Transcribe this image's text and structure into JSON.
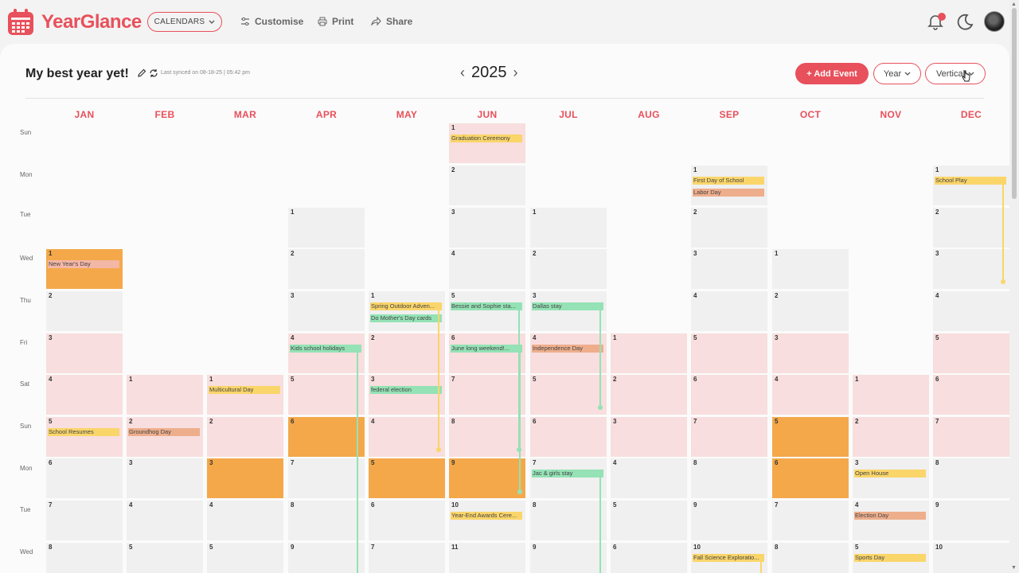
{
  "app": {
    "name": "YearGlance"
  },
  "nav": {
    "calendars_label": "CALENDARS",
    "customise_label": "Customise",
    "print_label": "Print",
    "share_label": "Share"
  },
  "calendar": {
    "title": "My best year yet!",
    "synced": "Last synced on 08-18-25 | 05:42 pm",
    "year": "2025",
    "add_event_label": "+ Add Event",
    "view_label": "Year",
    "layout_label": "Vertical"
  },
  "months": [
    "JAN",
    "FEB",
    "MAR",
    "APR",
    "MAY",
    "JUN",
    "JUL",
    "AUG",
    "SEP",
    "OCT",
    "NOV",
    "DEC"
  ],
  "weekdays": [
    "Sun",
    "Mon",
    "Tue",
    "Wed",
    "Thu",
    "Fri",
    "Sat",
    "Sun",
    "Mon",
    "Tue",
    "Wed"
  ],
  "cells": [
    {
      "m": 0,
      "r": 3,
      "d": "1",
      "t": "hl"
    },
    {
      "m": 0,
      "r": 4,
      "d": "2"
    },
    {
      "m": 0,
      "r": 5,
      "d": "3",
      "t": "we"
    },
    {
      "m": 0,
      "r": 6,
      "d": "4",
      "t": "we"
    },
    {
      "m": 0,
      "r": 7,
      "d": "5",
      "t": "we"
    },
    {
      "m": 0,
      "r": 8,
      "d": "6"
    },
    {
      "m": 0,
      "r": 9,
      "d": "7"
    },
    {
      "m": 0,
      "r": 10,
      "d": "8"
    },
    {
      "m": 1,
      "r": 6,
      "d": "1",
      "t": "we"
    },
    {
      "m": 1,
      "r": 7,
      "d": "2",
      "t": "we"
    },
    {
      "m": 1,
      "r": 8,
      "d": "3"
    },
    {
      "m": 1,
      "r": 9,
      "d": "4"
    },
    {
      "m": 1,
      "r": 10,
      "d": "5"
    },
    {
      "m": 2,
      "r": 6,
      "d": "1",
      "t": "we"
    },
    {
      "m": 2,
      "r": 7,
      "d": "2",
      "t": "we"
    },
    {
      "m": 2,
      "r": 8,
      "d": "3",
      "t": "hl"
    },
    {
      "m": 2,
      "r": 9,
      "d": "4"
    },
    {
      "m": 2,
      "r": 10,
      "d": "5"
    },
    {
      "m": 3,
      "r": 2,
      "d": "1"
    },
    {
      "m": 3,
      "r": 3,
      "d": "2"
    },
    {
      "m": 3,
      "r": 4,
      "d": "3"
    },
    {
      "m": 3,
      "r": 5,
      "d": "4",
      "t": "we"
    },
    {
      "m": 3,
      "r": 6,
      "d": "5",
      "t": "we"
    },
    {
      "m": 3,
      "r": 7,
      "d": "6",
      "t": "hl"
    },
    {
      "m": 3,
      "r": 8,
      "d": "7"
    },
    {
      "m": 3,
      "r": 9,
      "d": "8"
    },
    {
      "m": 3,
      "r": 10,
      "d": "9"
    },
    {
      "m": 4,
      "r": 4,
      "d": "1"
    },
    {
      "m": 4,
      "r": 5,
      "d": "2",
      "t": "we"
    },
    {
      "m": 4,
      "r": 6,
      "d": "3",
      "t": "we"
    },
    {
      "m": 4,
      "r": 7,
      "d": "4",
      "t": "we"
    },
    {
      "m": 4,
      "r": 8,
      "d": "5",
      "t": "hl"
    },
    {
      "m": 4,
      "r": 9,
      "d": "6"
    },
    {
      "m": 4,
      "r": 10,
      "d": "7"
    },
    {
      "m": 5,
      "r": 0,
      "d": "1",
      "t": "we"
    },
    {
      "m": 5,
      "r": 1,
      "d": "2"
    },
    {
      "m": 5,
      "r": 2,
      "d": "3"
    },
    {
      "m": 5,
      "r": 3,
      "d": "4"
    },
    {
      "m": 5,
      "r": 4,
      "d": "5"
    },
    {
      "m": 5,
      "r": 5,
      "d": "6",
      "t": "we"
    },
    {
      "m": 5,
      "r": 6,
      "d": "7",
      "t": "we"
    },
    {
      "m": 5,
      "r": 7,
      "d": "8",
      "t": "we"
    },
    {
      "m": 5,
      "r": 8,
      "d": "9",
      "t": "hl"
    },
    {
      "m": 5,
      "r": 9,
      "d": "10"
    },
    {
      "m": 5,
      "r": 10,
      "d": "11"
    },
    {
      "m": 6,
      "r": 2,
      "d": "1"
    },
    {
      "m": 6,
      "r": 3,
      "d": "2"
    },
    {
      "m": 6,
      "r": 4,
      "d": "3"
    },
    {
      "m": 6,
      "r": 5,
      "d": "4",
      "t": "we"
    },
    {
      "m": 6,
      "r": 6,
      "d": "5",
      "t": "we"
    },
    {
      "m": 6,
      "r": 7,
      "d": "6",
      "t": "we"
    },
    {
      "m": 6,
      "r": 8,
      "d": "7"
    },
    {
      "m": 6,
      "r": 9,
      "d": "8"
    },
    {
      "m": 6,
      "r": 10,
      "d": "9"
    },
    {
      "m": 7,
      "r": 5,
      "d": "1",
      "t": "we"
    },
    {
      "m": 7,
      "r": 6,
      "d": "2",
      "t": "we"
    },
    {
      "m": 7,
      "r": 7,
      "d": "3",
      "t": "we"
    },
    {
      "m": 7,
      "r": 8,
      "d": "4"
    },
    {
      "m": 7,
      "r": 9,
      "d": "5"
    },
    {
      "m": 7,
      "r": 10,
      "d": "6"
    },
    {
      "m": 8,
      "r": 1,
      "d": "1"
    },
    {
      "m": 8,
      "r": 2,
      "d": "2"
    },
    {
      "m": 8,
      "r": 3,
      "d": "3"
    },
    {
      "m": 8,
      "r": 4,
      "d": "4"
    },
    {
      "m": 8,
      "r": 5,
      "d": "5",
      "t": "we"
    },
    {
      "m": 8,
      "r": 6,
      "d": "6",
      "t": "we"
    },
    {
      "m": 8,
      "r": 7,
      "d": "7",
      "t": "we"
    },
    {
      "m": 8,
      "r": 8,
      "d": "8"
    },
    {
      "m": 8,
      "r": 9,
      "d": "9"
    },
    {
      "m": 8,
      "r": 10,
      "d": "10"
    },
    {
      "m": 9,
      "r": 3,
      "d": "1"
    },
    {
      "m": 9,
      "r": 4,
      "d": "2"
    },
    {
      "m": 9,
      "r": 5,
      "d": "3",
      "t": "we"
    },
    {
      "m": 9,
      "r": 6,
      "d": "4",
      "t": "we"
    },
    {
      "m": 9,
      "r": 7,
      "d": "5",
      "t": "hl"
    },
    {
      "m": 9,
      "r": 8,
      "d": "6",
      "t": "hl"
    },
    {
      "m": 9,
      "r": 9,
      "d": "7"
    },
    {
      "m": 9,
      "r": 10,
      "d": "8"
    },
    {
      "m": 10,
      "r": 6,
      "d": "1",
      "t": "we"
    },
    {
      "m": 10,
      "r": 7,
      "d": "2",
      "t": "we"
    },
    {
      "m": 10,
      "r": 8,
      "d": "3"
    },
    {
      "m": 10,
      "r": 9,
      "d": "4"
    },
    {
      "m": 10,
      "r": 10,
      "d": "5"
    },
    {
      "m": 11,
      "r": 1,
      "d": "1"
    },
    {
      "m": 11,
      "r": 2,
      "d": "2"
    },
    {
      "m": 11,
      "r": 3,
      "d": "3"
    },
    {
      "m": 11,
      "r": 4,
      "d": "4"
    },
    {
      "m": 11,
      "r": 5,
      "d": "5",
      "t": "we"
    },
    {
      "m": 11,
      "r": 6,
      "d": "6",
      "t": "we"
    },
    {
      "m": 11,
      "r": 7,
      "d": "7",
      "t": "we"
    },
    {
      "m": 11,
      "r": 8,
      "d": "8"
    },
    {
      "m": 11,
      "r": 9,
      "d": "9"
    },
    {
      "m": 11,
      "r": 10,
      "d": "10"
    }
  ],
  "events": [
    {
      "m": 0,
      "r": 3,
      "slot": 0,
      "label": "New Year's Day",
      "color": "p"
    },
    {
      "m": 0,
      "r": 7,
      "slot": 0,
      "label": "School Resumes",
      "color": "y"
    },
    {
      "m": 1,
      "r": 7,
      "slot": 0,
      "label": "Groundhog Day",
      "color": "o"
    },
    {
      "m": 2,
      "r": 6,
      "slot": 0,
      "label": "Multicultural Day",
      "color": "y"
    },
    {
      "m": 3,
      "r": 5,
      "slot": 0,
      "label": "Kids school holidays",
      "color": "g"
    },
    {
      "m": 4,
      "r": 4,
      "slot": 0,
      "label": "Spring Outdoor Adven...",
      "color": "y"
    },
    {
      "m": 4,
      "r": 4,
      "slot": 1,
      "label": "Do Mother's Day cards",
      "color": "g"
    },
    {
      "m": 4,
      "r": 6,
      "slot": 0,
      "label": "federal election",
      "color": "g"
    },
    {
      "m": 5,
      "r": 0,
      "slot": 0,
      "label": "Graduation Ceremony",
      "color": "y"
    },
    {
      "m": 5,
      "r": 4,
      "slot": 0,
      "label": "Bessie and Sophie sta...",
      "color": "g"
    },
    {
      "m": 5,
      "r": 5,
      "slot": 0,
      "label": "June long weekend!...",
      "color": "g"
    },
    {
      "m": 5,
      "r": 9,
      "slot": 0,
      "label": "Year-End Awards Cere...",
      "color": "y"
    },
    {
      "m": 6,
      "r": 4,
      "slot": 0,
      "label": "Dallas stay",
      "color": "g"
    },
    {
      "m": 6,
      "r": 5,
      "slot": 0,
      "label": "Independence Day",
      "color": "o"
    },
    {
      "m": 6,
      "r": 8,
      "slot": 0,
      "label": "Jac & girls stay",
      "color": "g"
    },
    {
      "m": 8,
      "r": 1,
      "slot": 0,
      "label": "First Day of School",
      "color": "y"
    },
    {
      "m": 8,
      "r": 1,
      "slot": 1,
      "label": "Labor Day",
      "color": "o"
    },
    {
      "m": 8,
      "r": 10,
      "slot": 0,
      "label": "Fall Science Exploratio...",
      "color": "y"
    },
    {
      "m": 10,
      "r": 8,
      "slot": 0,
      "label": "Open House",
      "color": "y"
    },
    {
      "m": 10,
      "r": 9,
      "slot": 0,
      "label": "Election Day",
      "color": "o"
    },
    {
      "m": 10,
      "r": 10,
      "slot": 0,
      "label": "Sports Day",
      "color": "y"
    },
    {
      "m": 11,
      "r": 1,
      "slot": 0,
      "label": "School Play",
      "color": "y"
    }
  ],
  "colors": {
    "accent": "#e8505b",
    "highlight": "#f4a84a",
    "weekend": "#f8dede",
    "yellow": "#fad56a",
    "green": "#94e2b5",
    "orange": "#eeae8c"
  }
}
